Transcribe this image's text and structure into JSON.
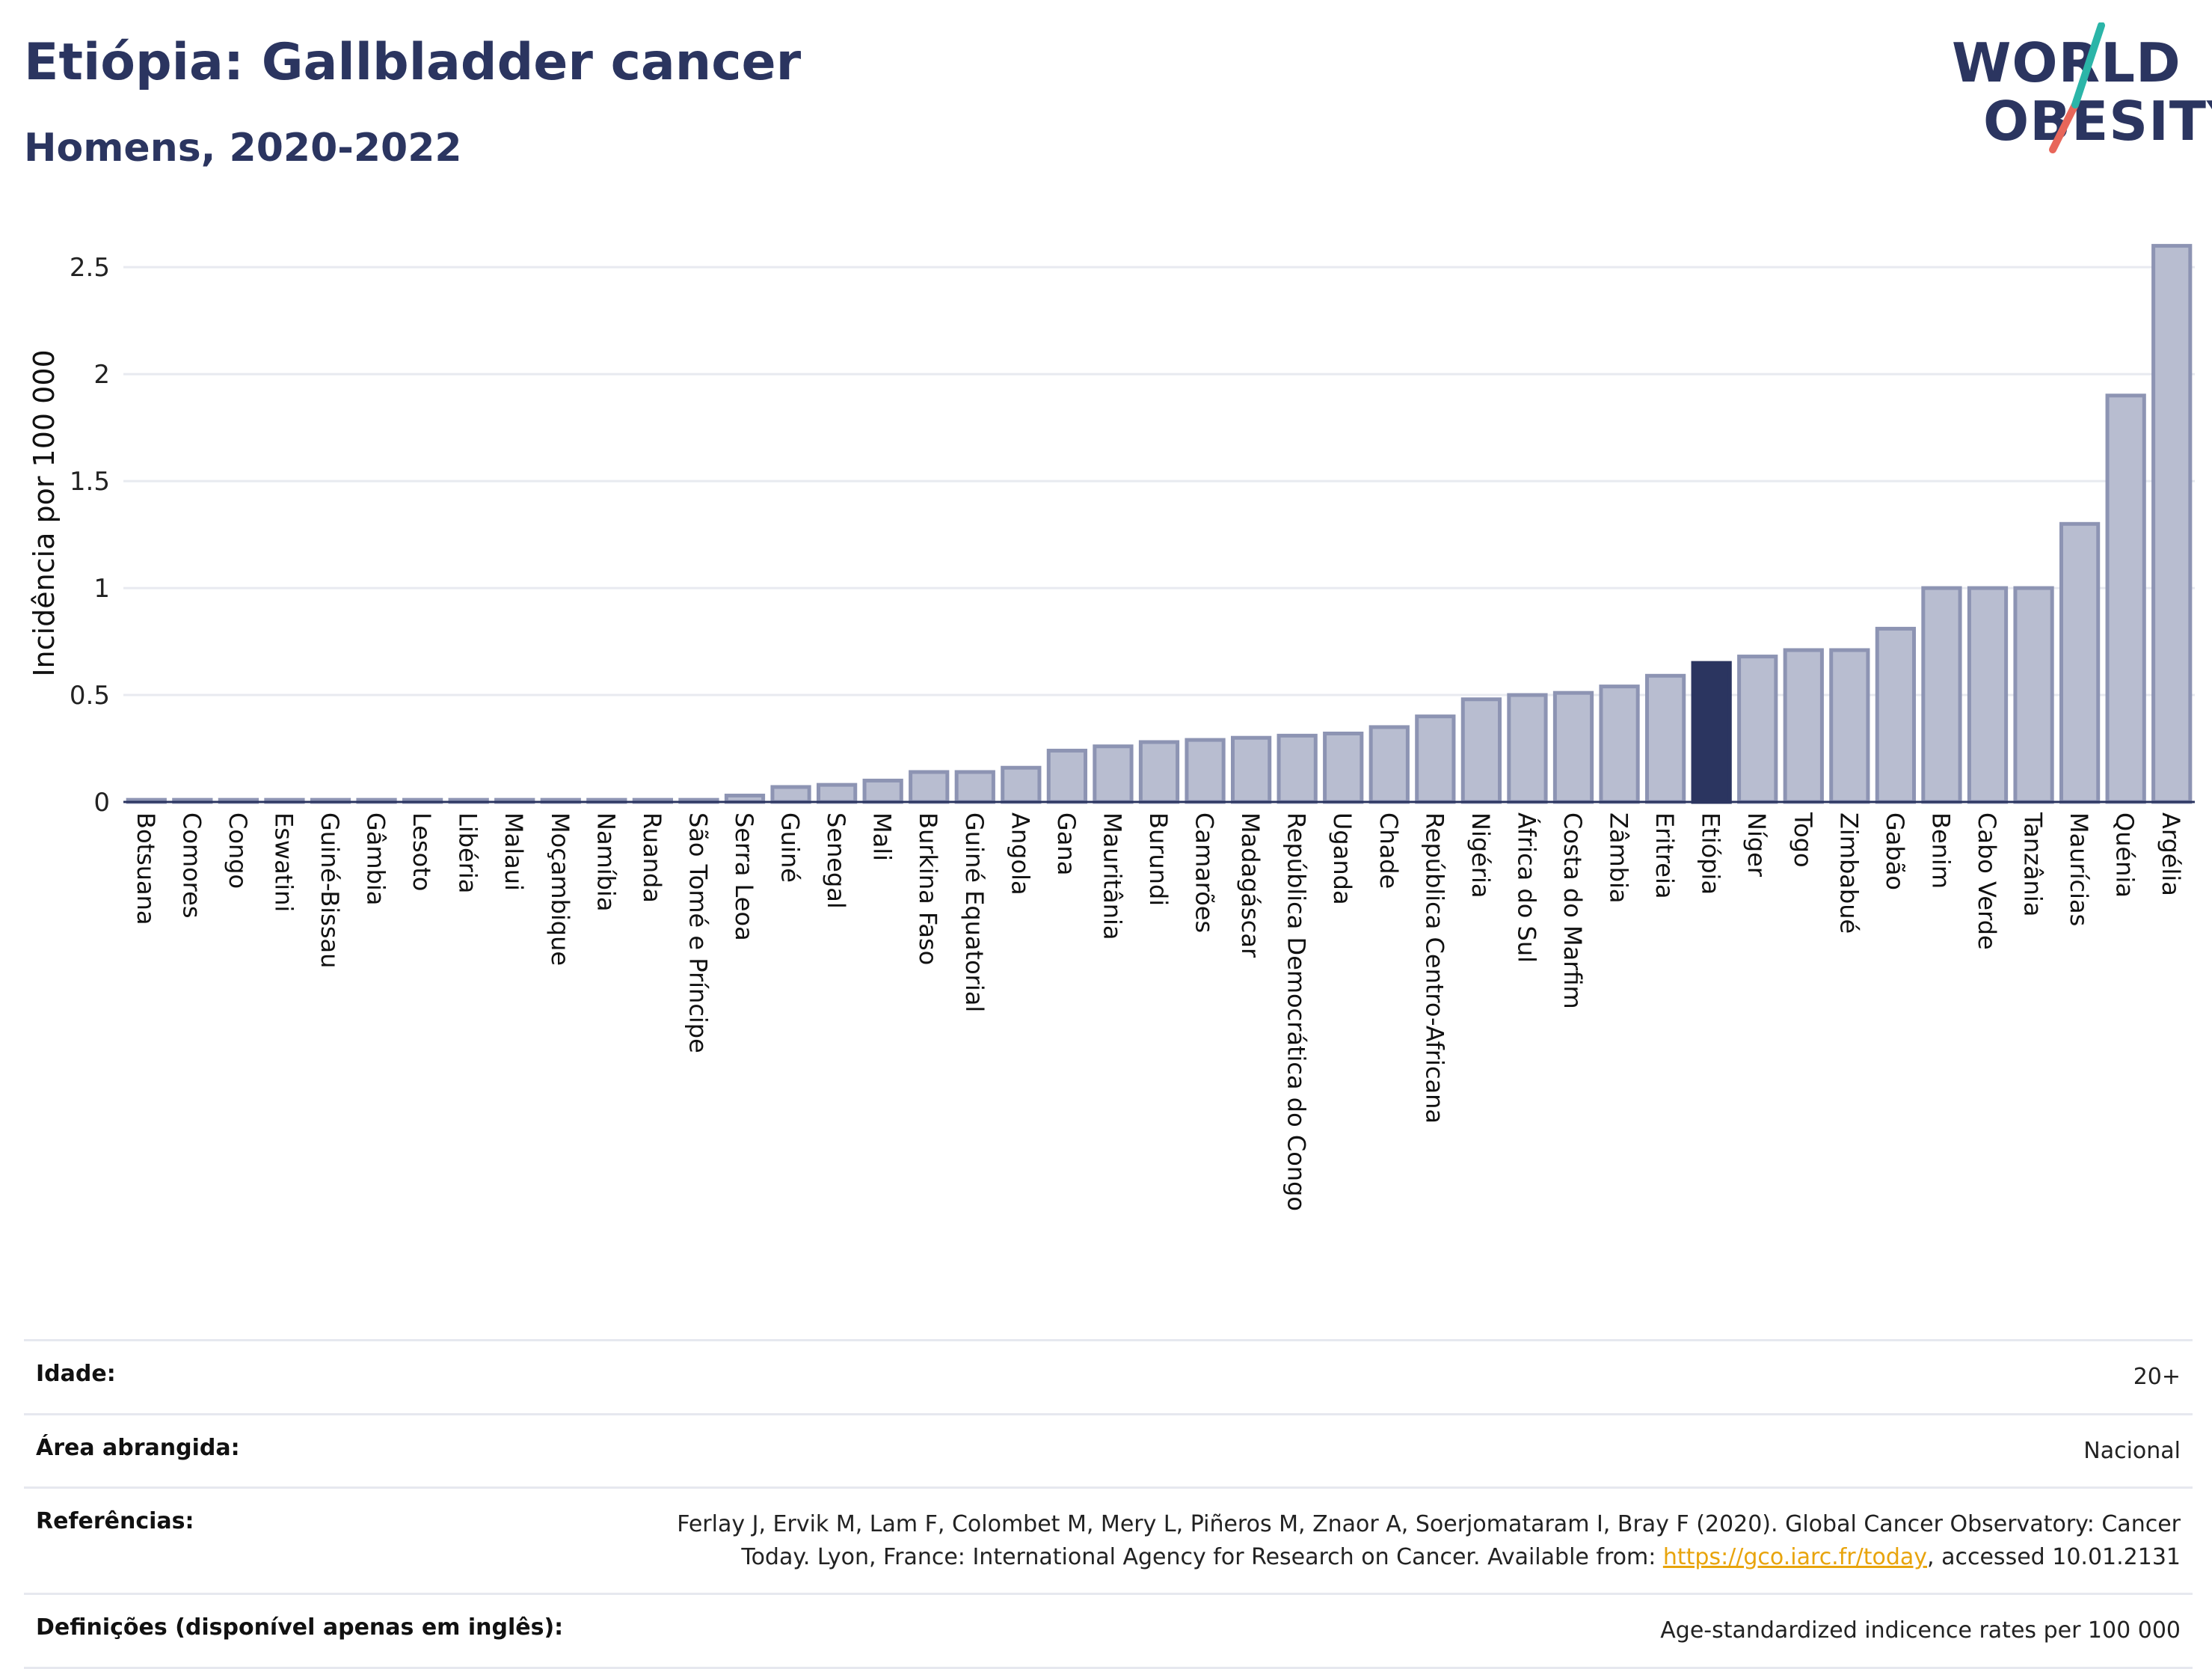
{
  "title": "Etiópia: Gallbladder cancer",
  "subtitle": "Homens, 2020-2022",
  "logo": {
    "line1": "WORLD",
    "line2": "OBESITY",
    "teal": "#2bb5a8",
    "coral": "#e8665a",
    "navy": "#2b3560"
  },
  "colors": {
    "bar": "#b8bdd0",
    "bar_border": "#8d94b3",
    "highlight": "#2b3560",
    "grid": "#e8eaf0",
    "axis": "#2b3560"
  },
  "chart_data": {
    "type": "bar",
    "ylabel": "Incidência por 100 000",
    "ylim": [
      0,
      2.7
    ],
    "yticks": [
      0,
      0.5,
      1,
      1.5,
      2,
      2.5
    ],
    "ytick_labels": [
      "0",
      "0.5",
      "1",
      "1.5",
      "2",
      "2.5"
    ],
    "highlight": "Etiópia",
    "categories": [
      "Botsuana",
      "Comores",
      "Congo",
      "Eswatini",
      "Guiné-Bissau",
      "Gâmbia",
      "Lesoto",
      "Libéria",
      "Malaui",
      "Moçambique",
      "Namíbia",
      "Ruanda",
      "São Tomé e Príncipe",
      "Serra Leoa",
      "Guiné",
      "Senegal",
      "Mali",
      "Burkina Faso",
      "Guiné Equatorial",
      "Angola",
      "Gana",
      "Mauritânia",
      "Burundi",
      "Camarões",
      "Madagáscar",
      "República Democrática do Congo",
      "Uganda",
      "Chade",
      "República Centro-Africana",
      "Nigéria",
      "África do Sul",
      "Costa do Marfim",
      "Zâmbia",
      "Eritreia",
      "Etiópia",
      "Níger",
      "Togo",
      "Zimbabué",
      "Gabão",
      "Benim",
      "Cabo Verde",
      "Tanzânia",
      "Maurícias",
      "Quénia",
      "Argélia"
    ],
    "values": [
      0.01,
      0.01,
      0.01,
      0.01,
      0.01,
      0.01,
      0.01,
      0.01,
      0.01,
      0.01,
      0.01,
      0.01,
      0.01,
      0.03,
      0.07,
      0.08,
      0.1,
      0.14,
      0.14,
      0.16,
      0.24,
      0.26,
      0.28,
      0.29,
      0.3,
      0.31,
      0.32,
      0.35,
      0.4,
      0.48,
      0.5,
      0.51,
      0.54,
      0.59,
      0.65,
      0.68,
      0.71,
      0.71,
      0.81,
      1.0,
      1.0,
      1.0,
      1.3,
      1.9,
      2.6
    ]
  },
  "meta": [
    {
      "label": "Idade:",
      "value": "20+"
    },
    {
      "label": "Área abrangida:",
      "value": "Nacional"
    },
    {
      "label": "Referências:",
      "value_pre": "Ferlay J, Ervik M, Lam F, Colombet M, Mery L, Piñeros M, Znaor A, Soerjomataram I, Bray F (2020). Global Cancer Observatory: Cancer Today. Lyon, France: International Agency for Research on Cancer. Available from: ",
      "link": "https://gco.iarc.fr/today",
      "value_post": ", accessed 10.01.2131"
    },
    {
      "label": "Definições (disponível apenas em inglês):",
      "value": "Age-standardized indicence rates per 100 000"
    }
  ]
}
